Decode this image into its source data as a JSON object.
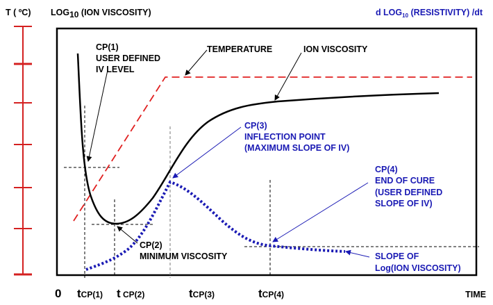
{
  "colors": {
    "temperature": "#e02020",
    "ion_viscosity": "#000000",
    "slope": "#1a1ab4",
    "axis": "#d42020"
  },
  "header": {
    "temp_axis": "T ( ºC)",
    "left_axis_pre": "LOG",
    "left_axis_sub": "10",
    "left_axis_post": " (ION VISCOSITY)",
    "right_axis_pre": "d LOG",
    "right_axis_sub": "10",
    "right_axis_post": " (RESISTIVITY) /dt"
  },
  "annotations": {
    "cp1": [
      "CP(1)",
      "USER DEFINED",
      "IV LEVEL"
    ],
    "temperature": "TEMPERATURE",
    "ion_viscosity": "ION VISCOSITY",
    "cp3": [
      "CP(3)",
      "INFLECTION POINT",
      "(MAXIMUM SLOPE OF IV)"
    ],
    "cp4": [
      "CP(4)",
      "END OF CURE",
      "(USER DEFINED",
      "SLOPE OF IV)"
    ],
    "cp2": [
      "CP(2)",
      "MINIMUM VISCOSITY"
    ],
    "slope": [
      "SLOPE OF",
      "Log(ION VISCOSITY)"
    ]
  },
  "x_axis": {
    "zero": "0",
    "ticks": [
      {
        "t": "t",
        "sub": "CP(1)"
      },
      {
        "t": "t",
        "sub": " CP(2)"
      },
      {
        "t": "t",
        "sub": "CP(3)"
      },
      {
        "t": "t",
        "sub": "CP(4)"
      }
    ],
    "label": "TIME"
  }
}
